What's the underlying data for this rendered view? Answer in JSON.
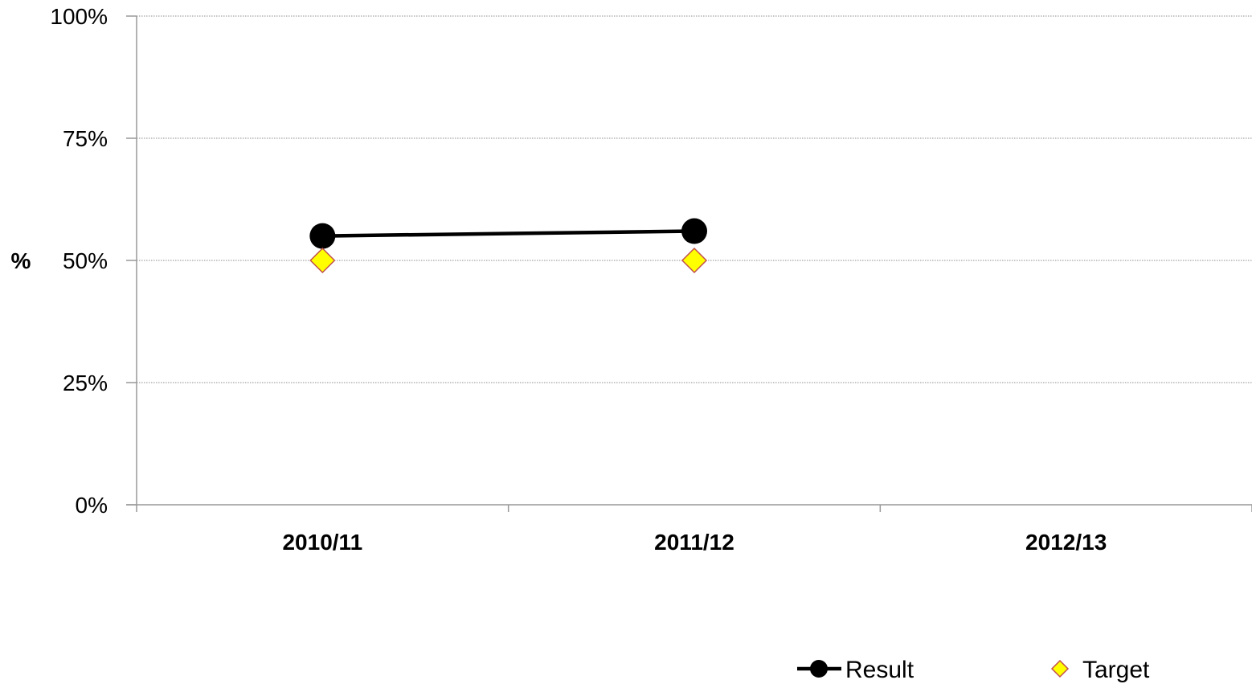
{
  "chart_data": {
    "type": "line",
    "title": "",
    "xlabel": "",
    "ylabel": "%",
    "categories": [
      "2010/11",
      "2011/12",
      "2012/13"
    ],
    "ylim": [
      0,
      100
    ],
    "yticks": [
      0,
      25,
      50,
      75,
      100
    ],
    "ytick_labels": [
      "0%",
      "25%",
      "50%",
      "75%",
      "100%"
    ],
    "grid": true,
    "legend_position": "bottom-right",
    "series": [
      {
        "name": "Result",
        "style": "line-with-circle-markers",
        "color": "#000000",
        "values": [
          55,
          56,
          null
        ]
      },
      {
        "name": "Target",
        "style": "diamond-markers",
        "color": "#ffff00",
        "edge_color": "#c0504d",
        "values": [
          50,
          50,
          null
        ]
      }
    ]
  }
}
